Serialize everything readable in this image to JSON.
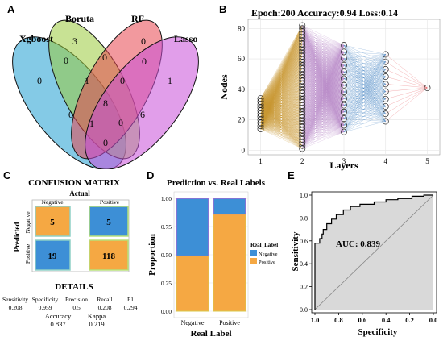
{
  "panels": {
    "A": "A",
    "B": "B",
    "C": "C",
    "D": "D",
    "E": "E"
  },
  "venn": {
    "sets": [
      {
        "name": "Xgboost",
        "color": "#1f9ed1"
      },
      {
        "name": "Boruta",
        "color": "#9aca3c"
      },
      {
        "name": "RF",
        "color": "#e8454e"
      },
      {
        "name": "Lasso",
        "color": "#c94fd8"
      }
    ],
    "regions": {
      "xgb_only": "0",
      "boruta_only": "3",
      "rf_only": "0",
      "lasso_only": "1",
      "xgb_boruta": "0",
      "boruta_rf": "0",
      "rf_lasso": "0",
      "xgb_rf": "0",
      "boruta_lasso": "6",
      "xgb_lasso": "0",
      "xgb_boruta_rf": "1",
      "boruta_rf_lasso": "0",
      "xgb_rf_lasso": "1",
      "xgb_boruta_lasso": "0",
      "all": "8"
    }
  },
  "network": {
    "title": "Epoch:200  Accuracy:0.94  Loss:0.14",
    "xlabel": "Layers",
    "ylabel": "Nodes",
    "xticks": [
      "1",
      "2",
      "3",
      "4",
      "5"
    ],
    "yticks": [
      "0",
      "20",
      "40",
      "60",
      "80"
    ],
    "layers": [
      {
        "x": 1,
        "y_min": 14,
        "y_max": 34,
        "nodes": 11,
        "edge_color": "#c9962f"
      },
      {
        "x": 2,
        "y_min": 1,
        "y_max": 82,
        "nodes": 41,
        "edge_color": "#b98ac8"
      },
      {
        "x": 3,
        "y_min": 12,
        "y_max": 69,
        "nodes": 14,
        "edge_color": "#3d7fc0"
      },
      {
        "x": 4,
        "y_min": 19,
        "y_max": 63,
        "nodes": 10,
        "edge_color": "#e0343a"
      },
      {
        "x": 5,
        "y_min": 41,
        "y_max": 41,
        "nodes": 1,
        "edge_color": "#000000"
      }
    ],
    "xlim": [
      0.7,
      5.3
    ],
    "ylim": [
      -3,
      86
    ]
  },
  "confusion": {
    "title": "CONFUSION MATRIX",
    "actual_label": "Actual",
    "predicted_label": "Predicted",
    "col_labels": [
      "Negative",
      "Positive"
    ],
    "row_labels": [
      "Negative",
      "Positive"
    ],
    "cells": [
      "5",
      "5",
      "19",
      "118"
    ],
    "cell_colors": [
      "#f5a843",
      "#3d8fd6",
      "#3d8fd6",
      "#f5a843"
    ],
    "details_title": "DETAILS",
    "metrics": [
      {
        "name": "Sensitivity",
        "value": "0.208"
      },
      {
        "name": "Specificity",
        "value": "0.959"
      },
      {
        "name": "Precision",
        "value": "0.5"
      },
      {
        "name": "Recall",
        "value": "0.208"
      },
      {
        "name": "F1",
        "value": "0.294"
      }
    ],
    "metrics2": [
      {
        "name": "Accuracy",
        "value": "0.837"
      },
      {
        "name": "Kappa",
        "value": "0.219"
      }
    ]
  },
  "chart_data": [
    {
      "type": "bar",
      "title": "Prediction vs. Real Labels",
      "xlabel": "Real Label",
      "ylabel": "Proportion",
      "categories": [
        "Negative",
        "Positive"
      ],
      "series": [
        {
          "name": "Positive",
          "color": "#f5a843",
          "values": [
            0.49,
            0.86
          ]
        },
        {
          "name": "Negative",
          "color": "#3d8fd6",
          "values": [
            0.51,
            0.14
          ]
        }
      ],
      "ylim": [
        0,
        1
      ],
      "yticks": [
        "0.00",
        "0.25",
        "0.50",
        "0.75",
        "1.00"
      ],
      "legend_title": "Real_Label",
      "legend_placement": "right"
    },
    {
      "type": "line",
      "xlabel": "Specificity",
      "ylabel": "Sensitivity",
      "annotation": "AUC: 0.839",
      "xlim": [
        1.0,
        0.0
      ],
      "ylim": [
        0,
        1
      ],
      "xticks": [
        "1.0",
        "0.8",
        "0.6",
        "0.4",
        "0.2",
        "0.0"
      ],
      "yticks": [
        "0.0",
        "0.2",
        "0.4",
        "0.6",
        "0.8",
        "1.0"
      ],
      "specificity": [
        1.0,
        1.0,
        0.96,
        0.96,
        0.94,
        0.94,
        0.93,
        0.93,
        0.9,
        0.9,
        0.86,
        0.86,
        0.82,
        0.82,
        0.76,
        0.76,
        0.7,
        0.7,
        0.62,
        0.62,
        0.5,
        0.5,
        0.4,
        0.4,
        0.3,
        0.3,
        0.18,
        0.18,
        0.08,
        0.08,
        0.0
      ],
      "sensitivity": [
        0.0,
        0.58,
        0.58,
        0.62,
        0.62,
        0.66,
        0.66,
        0.7,
        0.7,
        0.75,
        0.75,
        0.79,
        0.79,
        0.83,
        0.83,
        0.87,
        0.87,
        0.9,
        0.9,
        0.92,
        0.92,
        0.94,
        0.94,
        0.96,
        0.96,
        0.97,
        0.97,
        0.99,
        0.99,
        1.0,
        1.0
      ],
      "fill_color": "#d9d9d9"
    }
  ]
}
